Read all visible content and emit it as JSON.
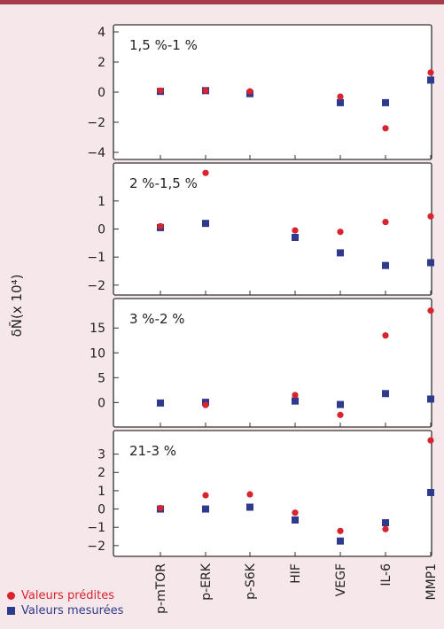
{
  "chart_data": {
    "type": "scatter",
    "ylabel": "δN̄(x 10⁴)",
    "categories": [
      "p-mTOR",
      "p-ERK",
      "p-S6K",
      "HIF",
      "VEGF",
      "IL-6",
      "MMP1"
    ],
    "legend": [
      {
        "name": "Valeurs prédites",
        "marker": "circle",
        "color": "#d9232e"
      },
      {
        "name": "Valeurs mesurées",
        "marker": "square",
        "color": "#2e3a8c"
      }
    ],
    "panels": [
      {
        "title": "1,5 %-1 %",
        "ylim": [
          -4,
          4
        ],
        "yticks": [
          4,
          2,
          0,
          -2,
          -4
        ],
        "predicted": [
          0.1,
          0.1,
          0.05,
          -0.3,
          -2.4,
          1.3
        ],
        "predicted_categories": [
          "p-mTOR",
          "p-ERK",
          "p-S6K",
          "VEGF",
          "IL-6",
          "MMP1"
        ],
        "measured": [
          0.05,
          0.1,
          -0.1,
          -0.7,
          -0.7,
          0.8
        ],
        "measured_categories": [
          "p-mTOR",
          "p-ERK",
          "p-S6K",
          "VEGF",
          "IL-6",
          "MMP1"
        ]
      },
      {
        "title": "2 %-1,5 %",
        "ylim": [
          -2.1,
          2.1
        ],
        "yticks": [
          1,
          0,
          -1,
          -2
        ],
        "predicted": [
          0.1,
          2.0,
          -0.05,
          -0.1,
          0.25,
          0.45
        ],
        "predicted_categories": [
          "p-mTOR",
          "p-ERK",
          "HIF",
          "VEGF",
          "IL-6",
          "MMP1"
        ],
        "measured": [
          0.05,
          0.2,
          -0.3,
          -0.85,
          -1.3,
          -1.2
        ],
        "measured_categories": [
          "p-mTOR",
          "p-ERK",
          "HIF",
          "VEGF",
          "IL-6",
          "MMP1"
        ]
      },
      {
        "title": "3 %-2 %",
        "ylim": [
          -3.5,
          19.5
        ],
        "yticks": [
          15,
          10,
          5,
          0
        ],
        "predicted": [
          -0.5,
          1.5,
          -2.5,
          13.5,
          18.5
        ],
        "predicted_categories": [
          "p-ERK",
          "HIF",
          "VEGF",
          "IL-6",
          "MMP1"
        ],
        "measured": [
          -0.1,
          0.05,
          0.3,
          -0.4,
          1.8,
          0.7
        ],
        "measured_categories": [
          "p-mTOR",
          "p-ERK",
          "HIF",
          "VEGF",
          "IL-6",
          "MMP1"
        ]
      },
      {
        "title": "21-3 %",
        "ylim": [
          -2.2,
          3.9
        ],
        "yticks": [
          3,
          2,
          1,
          0,
          -1,
          -2
        ],
        "predicted": [
          0.05,
          0.75,
          0.8,
          -0.2,
          -1.2,
          -1.1,
          3.75
        ],
        "measured": [
          0.0,
          0.0,
          0.1,
          -0.6,
          -1.75,
          -0.75,
          0.9
        ]
      }
    ]
  }
}
